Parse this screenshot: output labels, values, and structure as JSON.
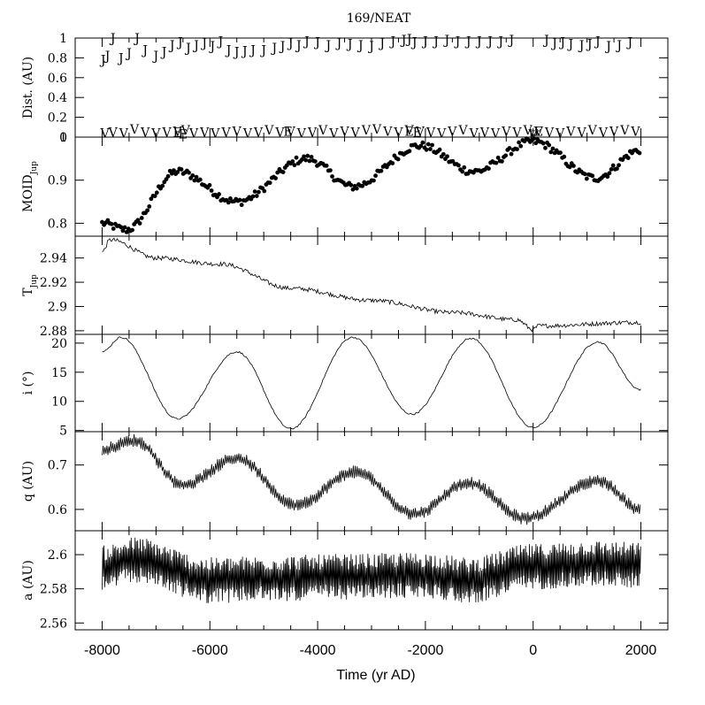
{
  "figure": {
    "title": "169/NEAT",
    "xlabel": "Time (yr AD)"
  },
  "chart_data": [
    {
      "type": "scatter",
      "id": "dist",
      "ylabel": "Dist. (AU)",
      "xlim": [
        -8500,
        2500
      ],
      "ylim": [
        0,
        1
      ],
      "ytick_values": [
        0,
        0.2,
        0.4,
        0.6,
        0.8,
        1
      ],
      "ytick_labels": [
        "0",
        "0.2",
        "0.4",
        "0.6",
        "0.8",
        "1"
      ],
      "marker_series": [
        {
          "marker": "J",
          "x": [
            -7980,
            -7900,
            -7800,
            -7650,
            -7500,
            -7350,
            -7200,
            -7000,
            -6850,
            -6700,
            -6550,
            -6400,
            -6250,
            -6100,
            -5950,
            -5800,
            -5650,
            -5500,
            -5350,
            -5200,
            -5000,
            -4800,
            -4650,
            -4500,
            -4350,
            -4200,
            -4000,
            -3800,
            -3600,
            -3400,
            -3200,
            -3000,
            -2800,
            -2600,
            -2400,
            -2300,
            -2200,
            -2000,
            -1800,
            -1600,
            -1400,
            -1200,
            -1000,
            -800,
            -600,
            -400,
            250,
            400,
            550,
            700,
            900,
            1050,
            1200,
            1400,
            1600,
            1800
          ],
          "y": [
            0.78,
            0.82,
            1.0,
            0.8,
            0.85,
            1.0,
            0.88,
            0.82,
            0.86,
            0.93,
            0.96,
            0.9,
            0.93,
            0.95,
            0.92,
            0.97,
            0.88,
            0.86,
            0.87,
            0.88,
            0.88,
            0.9,
            0.92,
            0.95,
            0.93,
            0.97,
            0.96,
            0.93,
            0.95,
            0.94,
            0.93,
            0.92,
            0.95,
            0.97,
            0.98,
            0.99,
            0.96,
            0.97,
            0.97,
            0.98,
            0.97,
            0.97,
            0.97,
            0.97,
            0.97,
            0.98,
            0.98,
            0.95,
            0.96,
            0.94,
            0.93,
            0.94,
            0.97,
            0.92,
            0.93,
            0.96
          ]
        },
        {
          "marker": "V",
          "x": [
            -7950,
            -7800,
            -7600,
            -7400,
            -7200,
            -7000,
            -6800,
            -6600,
            -6450,
            -6300,
            -6100,
            -5900,
            -5700,
            -5500,
            -5300,
            -5100,
            -4900,
            -4700,
            -4500,
            -4300,
            -4100,
            -3900,
            -3700,
            -3500,
            -3300,
            -3100,
            -2900,
            -2700,
            -2500,
            -2300,
            -2100,
            -1900,
            -1700,
            -1500,
            -1300,
            -1100,
            -900,
            -700,
            -500,
            -300,
            -100,
            0,
            100,
            300,
            500,
            700,
            900,
            1100,
            1300,
            1500,
            1700,
            1900
          ],
          "y": [
            0.04,
            0.05,
            0.04,
            0.08,
            0.05,
            0.04,
            0.05,
            0.06,
            0.07,
            0.04,
            0.05,
            0.04,
            0.05,
            0.06,
            0.04,
            0.05,
            0.07,
            0.05,
            0.06,
            0.04,
            0.05,
            0.07,
            0.04,
            0.06,
            0.05,
            0.07,
            0.08,
            0.06,
            0.05,
            0.07,
            0.06,
            0.05,
            0.04,
            0.06,
            0.07,
            0.04,
            0.05,
            0.04,
            0.06,
            0.05,
            0.07,
            0.03,
            0.06,
            0.05,
            0.04,
            0.06,
            0.05,
            0.07,
            0.05,
            0.06,
            0.07,
            0.06
          ]
        },
        {
          "marker": "E",
          "x": [
            -6600,
            -6500,
            -4550,
            -2300,
            -2150,
            0,
            100
          ],
          "y": [
            0.05,
            0.03,
            0.06,
            0.06,
            0.05,
            0.02,
            0.06
          ]
        }
      ]
    },
    {
      "type": "scatter",
      "id": "moid",
      "ylabel": "MOID",
      "ylabel_subscript": "Jup",
      "xlim": [
        -8500,
        2500
      ],
      "ylim": [
        0.77,
        1.0
      ],
      "ytick_values": [
        0.8,
        0.9,
        1
      ],
      "ytick_labels": [
        "0.8",
        "0.9",
        "1"
      ],
      "model": {
        "x": [
          -8000,
          -7550,
          -6600,
          -5500,
          -4200,
          -3350,
          -2100,
          -1100,
          0,
          1150,
          2000
        ],
        "y": [
          0.8,
          0.785,
          0.92,
          0.85,
          0.95,
          0.885,
          0.98,
          0.92,
          0.99,
          0.905,
          0.97
        ]
      }
    },
    {
      "type": "line",
      "id": "tjup",
      "ylabel": "T",
      "ylabel_subscript": "Jup",
      "xlim": [
        -8500,
        2500
      ],
      "ylim": [
        2.877,
        2.958
      ],
      "ytick_values": [
        2.88,
        2.9,
        2.92,
        2.94
      ],
      "ytick_labels": [
        "2.88",
        "2.9",
        "2.92",
        "2.94"
      ],
      "model": {
        "x": [
          -8000,
          -7850,
          -7000,
          -5800,
          -4500,
          -3000,
          -1500,
          -300,
          0,
          100,
          2000
        ],
        "y": [
          2.945,
          2.955,
          2.94,
          2.935,
          2.915,
          2.905,
          2.895,
          2.889,
          2.881,
          2.884,
          2.887
        ]
      }
    },
    {
      "type": "line",
      "id": "incl",
      "ylabel": "i (°)",
      "xlim": [
        -8500,
        2500
      ],
      "ylim": [
        4.8,
        21.5
      ],
      "ytick_values": [
        5,
        10,
        15,
        20
      ],
      "ytick_labels": [
        "5",
        "10",
        "15",
        "20"
      ],
      "model": {
        "x": [
          -8000,
          -7650,
          -6600,
          -5500,
          -4500,
          -3350,
          -2250,
          -1150,
          0,
          1200,
          2000
        ],
        "y": [
          18.5,
          21.0,
          7.0,
          18.5,
          5.3,
          21.0,
          7.8,
          20.8,
          5.5,
          20.2,
          12.0
        ]
      }
    },
    {
      "type": "line",
      "id": "q",
      "ylabel": "q (AU)",
      "xlim": [
        -8500,
        2500
      ],
      "ylim": [
        0.552,
        0.775
      ],
      "ytick_values": [
        0.6,
        0.7
      ],
      "ytick_labels": [
        "0.6",
        "0.7"
      ],
      "model": {
        "x": [
          -8000,
          -7400,
          -6500,
          -5500,
          -4400,
          -3300,
          -2200,
          -1200,
          -150,
          1200,
          2000
        ],
        "y": [
          0.735,
          0.755,
          0.655,
          0.715,
          0.61,
          0.685,
          0.59,
          0.66,
          0.58,
          0.665,
          0.6
        ]
      }
    },
    {
      "type": "line",
      "id": "a",
      "ylabel": "a (AU)",
      "xlim": [
        -8500,
        2500
      ],
      "ylim": [
        2.556,
        2.614
      ],
      "ytick_values": [
        2.56,
        2.58,
        2.6
      ],
      "ytick_labels": [
        "2.56",
        "2.58",
        "2.6"
      ],
      "model": {
        "x": [
          -8000,
          -7400,
          -6000,
          -5000,
          -3500,
          -2000,
          -1200,
          0,
          1000,
          2000
        ],
        "y": [
          2.592,
          2.597,
          2.585,
          2.586,
          2.587,
          2.588,
          2.585,
          2.593,
          2.595,
          2.594
        ]
      }
    }
  ],
  "xaxis": {
    "tick_values": [
      -8000,
      -6000,
      -4000,
      -2000,
      0,
      2000
    ],
    "tick_labels": [
      "-8000",
      "-6000",
      "-4000",
      "-2000",
      "0",
      "2000"
    ]
  }
}
